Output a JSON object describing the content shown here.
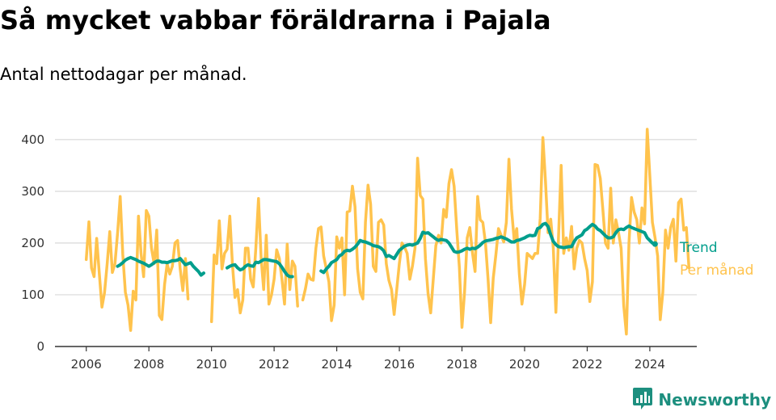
{
  "title": "Så mycket vabbar föräldrarna i Pajala",
  "subtitle": "Antal nettodagar per månad.",
  "brand": {
    "name": "Newsworthy",
    "icon": "bar-chart-speech-bubble-icon"
  },
  "colors": {
    "trend": "#009e8c",
    "monthly": "#ffc34d",
    "grid": "#d9d9d9",
    "axis": "#333333",
    "brand": "#1d8f7f"
  },
  "chart_data": {
    "type": "line",
    "title": "Så mycket vabbar föräldrarna i Pajala",
    "subtitle": "Antal nettodagar per månad.",
    "xlim": [
      2005.0,
      2025.5
    ],
    "ylim": [
      0,
      420
    ],
    "x_ticks": [
      "2006",
      "2008",
      "2010",
      "2012",
      "2014",
      "2016",
      "2018",
      "2020",
      "2022",
      "2024"
    ],
    "y_ticks": [
      "0",
      "100",
      "200",
      "300",
      "400"
    ],
    "grid": true,
    "legend": "right end of lines",
    "series": [
      {
        "name": "Per månad",
        "color": "#ffc34d",
        "segments": [
          {
            "start": "2006-01",
            "values": [
              168,
              241,
              152,
              135,
              209,
              140,
              76,
              104,
              160,
              222,
              143,
              160,
              220,
              290,
              178,
              105,
              80,
              31,
              107,
              90,
              252,
              180,
              135,
              263,
              252,
              190,
              160,
              225,
              60,
              52,
              120,
              160,
              140,
              155,
              200,
              205,
              150,
              108,
              170,
              92
            ]
          },
          {
            "start": "2010-01",
            "values": [
              48,
              177,
              160,
              243,
              150,
              180,
              188,
              252,
              160,
              95,
              110,
              65,
              90,
              190,
              190,
              130,
              115,
              190,
              286,
              172,
              110,
              215,
              82,
              100,
              130,
              187,
              170,
              130,
              82,
              198,
              110,
              165,
              155,
              78
            ]
          },
          {
            "start": "2012-12",
            "values": [
              90,
              112,
              140,
              130,
              128,
              190,
              228,
              231,
              175,
              150,
              125,
              50,
              80,
              212,
              190,
              210,
              100,
              260,
              262,
              310,
              270,
              150,
              105,
              92,
              240,
              312,
              275,
              155,
              145,
              240,
              245,
              235,
              160,
              128,
              110,
              62,
              110,
              160,
              200,
              192,
              180,
              130,
              155,
              190,
              364,
              292,
              285,
              170,
              102,
              65,
              130,
              195,
              215,
              200,
              265,
              250,
              315,
              342,
              310,
              225,
              153,
              37,
              105,
              210,
              230,
              182,
              145,
              290,
              245,
              240,
              200,
              130,
              46,
              132,
              178,
              228,
              215,
              202,
              240,
              362,
              266,
              206,
              228,
              140,
              82,
              120,
              180,
              175,
              170,
              180,
              180,
              248,
              404,
              320,
              220,
              246,
              190,
              66,
              210,
              350,
              180,
              210,
              186,
              232,
              150,
              190,
              205,
              200,
              170,
              147,
              87,
              125,
              352,
              350,
              325,
              265,
              200,
              190,
              306,
              200,
              245,
              220,
              190,
              80,
              24,
              200,
              288,
              260,
              245,
              200,
              268,
              237,
              420,
              330,
              240,
              210,
              175,
              52,
              105,
              225,
              190,
              230,
              246,
              165,
              278,
              285,
              225,
              230,
              152
            ]
          }
        ]
      },
      {
        "name": "Trend",
        "color": "#009e8c",
        "segments": [
          {
            "start": "2007-01",
            "values": [
              155,
              158,
              162,
              167,
              170,
              172,
              170,
              168,
              165,
              163,
              161,
              158,
              155,
              158,
              162,
              165,
              165,
              163,
              163,
              162,
              164,
              166,
              166,
              167,
              170,
              164,
              158,
              160,
              162,
              155,
              150,
              145,
              138,
              142
            ]
          },
          {
            "start": "2010-07",
            "values": [
              152,
              155,
              157,
              158,
              152,
              148,
              150,
              155,
              158,
              156,
              155,
              163,
              162,
              165,
              168,
              168,
              167,
              166,
              165,
              164,
              160,
              153,
              145,
              138,
              135,
              135
            ]
          },
          {
            "start": "2013-07",
            "values": [
              146,
              143,
              150,
              155,
              162,
              165,
              168,
              175,
              178,
              184,
              186,
              185,
              188,
              192,
              198,
              205,
              203,
              202,
              200,
              198,
              195,
              194,
              193,
              190,
              185,
              174,
              176,
              173,
              170,
              178,
              186,
              190,
              194,
              196,
              197,
              196,
              198,
              200,
              209,
              221,
              219,
              220,
              216,
              212,
              208,
              205,
              207,
              206,
              205,
              200,
              192,
              184,
              182,
              183,
              185,
              188,
              190,
              188,
              190,
              189,
              192,
              196,
              201,
              204,
              205,
              206,
              207,
              209,
              210,
              212,
              210,
              208,
              205,
              202,
              202,
              205,
              206,
              208,
              210,
              213,
              215,
              214,
              215,
              228,
              230,
              236,
              238,
              232,
              216,
              203,
              197,
              193,
              192,
              191,
              192,
              193,
              193,
              203,
              210,
              213,
              216,
              224,
              227,
              232,
              236,
              233,
              227,
              224,
              219,
              214,
              210,
              210,
              212,
              220,
              226,
              227,
              226,
              230,
              233,
              230,
              228,
              226,
              224,
              222,
              220,
              210,
              205,
              200,
              198
            ]
          }
        ]
      }
    ]
  }
}
